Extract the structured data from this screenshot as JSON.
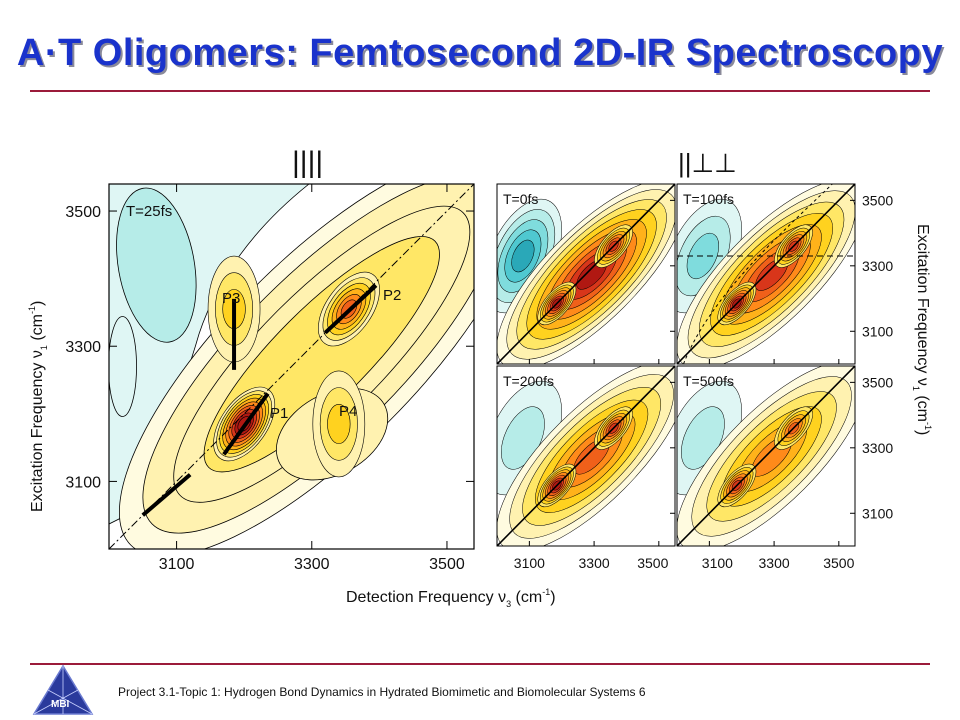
{
  "slide": {
    "title": "A·T Oligomers: Femtosecond 2D-IR Spectroscopy",
    "footer": "Project 3.1-Topic 1: Hydrogen Bond Dynamics in Hydrated Biomimetic and Biomolecular Systems 6",
    "logo_text": "MBI",
    "accent_color": "#9b1b3a",
    "title_color": "#1a33cc"
  },
  "chart_data": [
    {
      "type": "heatmap",
      "panel": "large",
      "structure_label": "||||",
      "time_label": "T=25fs",
      "xlabel": "Detection Frequency ν3 (cm-1)",
      "ylabel": "Excitation Frequency ν1 (cm-1)",
      "x_ticks": [
        3100,
        3300,
        3500
      ],
      "y_ticks": [
        3100,
        3300,
        3500
      ],
      "xlim": [
        3000,
        3540
      ],
      "ylim": [
        3000,
        3540
      ],
      "peaks": [
        {
          "label": "P1",
          "nu3": 3200,
          "nu1": 3185,
          "amplitude": 1.0
        },
        {
          "label": "P2",
          "nu3": 3355,
          "nu1": 3355,
          "amplitude": 0.65
        },
        {
          "label": "P3",
          "nu3": 3185,
          "nu1": 3355,
          "amplitude": 0.35
        },
        {
          "label": "P4",
          "nu3": 3340,
          "nu1": 3185,
          "amplitude": 0.35
        }
      ],
      "annotations": [
        "P1",
        "P2",
        "P3",
        "P4"
      ]
    },
    {
      "type": "heatmap",
      "panel": "small",
      "structure_label": "||⊥⊥",
      "panels": [
        {
          "time_label": "T=0fs",
          "position": "top-left"
        },
        {
          "time_label": "T=100fs",
          "position": "top-right"
        },
        {
          "time_label": "T=200fs",
          "position": "bottom-left"
        },
        {
          "time_label": "T=500fs",
          "position": "bottom-right"
        }
      ],
      "x_ticks": [
        3100,
        3300,
        3500
      ],
      "y_ticks": [
        3100,
        3300,
        3500
      ],
      "xlim": [
        3000,
        3550
      ],
      "ylim": [
        3000,
        3550
      ],
      "xlabel": "",
      "ylabel": "Excitation Frequency ν1 (cm-1)"
    }
  ],
  "labels": {
    "tick_3100": "3100",
    "tick_3300": "3300",
    "tick_3500": "3500",
    "large_xlabel_main": "Detection Frequency ν",
    "large_xlabel_sub": "3",
    "large_xlabel_unit_open": " (cm",
    "large_xlabel_sup": "-1",
    "large_xlabel_unit_close": ")",
    "large_ylabel_main": "Excitation Frequency ν",
    "large_ylabel_sub": "1",
    "large_ylabel_unit_open": " (cm",
    "large_ylabel_sup": "-1",
    "large_ylabel_unit_close": ")"
  }
}
